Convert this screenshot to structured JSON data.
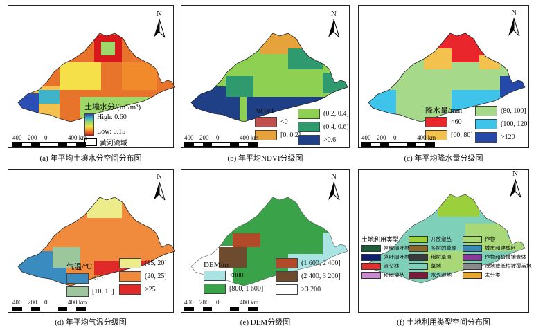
{
  "north_label": "N",
  "scale": {
    "ticks": [
      "400",
      "200",
      "0",
      "400 km"
    ]
  },
  "panels": [
    {
      "caption": "(a) 年平均土壤水分空间分布图",
      "legend": {
        "title": "土壤水分/(m³/m³)",
        "high": "High: 0.60",
        "low": "Low: 0.15",
        "boundary": "黄河流域"
      }
    },
    {
      "caption": "(b) 年平均NDVI分级图",
      "legend": {
        "title": "NDVI",
        "classes": [
          {
            "label": "<0",
            "color": "#c0504d"
          },
          {
            "label": "[0, 0.2]",
            "color": "#e6a33b"
          },
          {
            "label": "(0.2, 0.4]",
            "color": "#8ed052"
          },
          {
            "label": "(0.4, 0.6]",
            "color": "#2f9a6e"
          },
          {
            "label": ">0.6",
            "color": "#1f3f86"
          }
        ]
      }
    },
    {
      "caption": "(c) 年平均降水量分级图",
      "legend": {
        "title": "降水量/mm",
        "classes": [
          {
            "label": "<60",
            "color": "#e8262b"
          },
          {
            "label": "[60, 80]",
            "color": "#f2c14e"
          },
          {
            "label": "(80, 100]",
            "color": "#a6d98a"
          },
          {
            "label": "(100, 120]",
            "color": "#3ec3ea"
          },
          {
            "label": ">120",
            "color": "#2549a8"
          }
        ]
      }
    },
    {
      "caption": "(d) 年平均气温分级图",
      "legend": {
        "title": "气温/℃",
        "classes": [
          {
            "label": "<10",
            "color": "#3a8cc0"
          },
          {
            "label": "[10, 15]",
            "color": "#9cc79c"
          },
          {
            "label": "(15, 20]",
            "color": "#ecec8a"
          },
          {
            "label": "(20, 25]",
            "color": "#f08a3c"
          },
          {
            "label": ">25",
            "color": "#e02a2a"
          }
        ]
      }
    },
    {
      "caption": "(e) DEM分级图",
      "legend": {
        "title": "DEM/m",
        "classes": [
          {
            "label": "<800",
            "color": "#a9e3e3"
          },
          {
            "label": "[800, 1 600]",
            "color": "#3aa34a"
          },
          {
            "label": "(1 600, 2 400]",
            "color": "#b24a2a"
          },
          {
            "label": "(2 400, 3 200]",
            "color": "#6e4a2e"
          },
          {
            "label": ">3 200",
            "color": "#ffffff"
          }
        ]
      }
    },
    {
      "caption": "(f) 土地利用类型空间分布图",
      "legend": {
        "title": "土地利用类型",
        "classes": [
          {
            "label": "常绿阔叶林",
            "color": "#1d5e3a"
          },
          {
            "label": "落叶阔叶林",
            "color": "#0f1f6e"
          },
          {
            "label": "混交林",
            "color": "#e03030"
          },
          {
            "label": "郁闭灌丛",
            "color": "#c98ad0"
          },
          {
            "label": "开放灌丛",
            "color": "#9ccf3c"
          },
          {
            "label": "多树的草原",
            "color": "#8a6a2a"
          },
          {
            "label": "稀树草原",
            "color": "#3a3a3a"
          },
          {
            "label": "草地",
            "color": "#7fd0b8"
          },
          {
            "label": "水久湿地",
            "color": "#7a1c3a"
          },
          {
            "label": "作物",
            "color": "#a8d878"
          },
          {
            "label": "城市和建成区",
            "color": "#3a8ab8"
          },
          {
            "label": "作物和植被镶嵌体",
            "color": "#8a3a9a"
          },
          {
            "label": "裸地或低植被覆盖地",
            "color": "#8a8a8a"
          },
          {
            "label": "未分类",
            "color": "#e8a830"
          }
        ]
      }
    }
  ]
}
